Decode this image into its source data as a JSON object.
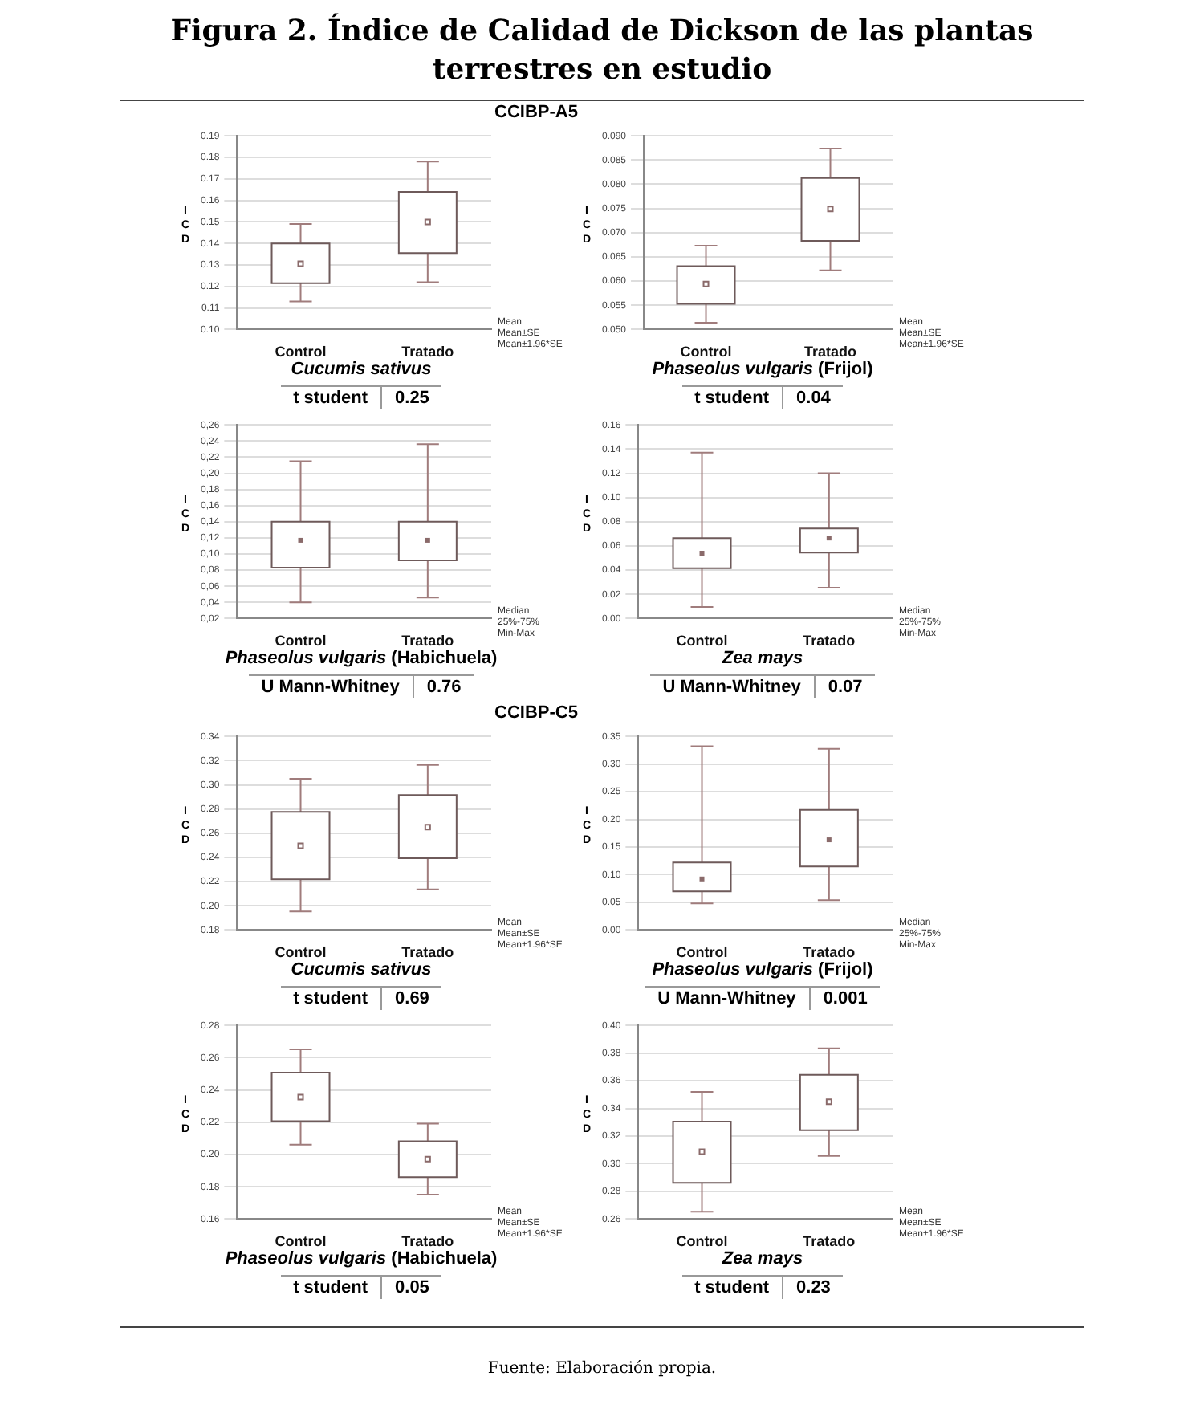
{
  "chart_data": [
    {
      "type": "box",
      "title": "Figura 2. Índice de Calidad de Dickson de las plantas terrestres en estudio",
      "subtitle": "CCIBP-A5",
      "xlabel": "Cucumis sativus",
      "ylabel": "ICD",
      "categories": [
        "Control",
        "Tratado"
      ],
      "grid": "y",
      "ylim": [
        0.1,
        0.19
      ],
      "yticks": [
        {
          "value": 0.1,
          "label": "0.10"
        },
        0.11,
        0.12,
        0.13,
        0.14,
        0.15,
        0.16,
        0.17,
        0.18,
        0.19
      ],
      "boxes": [
        {
          "low": 0.113,
          "q1": 0.1215,
          "q3": 0.14,
          "high": 0.149,
          "mean": 0.1306
        },
        {
          "low": 0.122,
          "q1": 0.1355,
          "q3": 0.164,
          "high": 0.178,
          "mean": 0.15
        }
      ],
      "annotations": [
        "t student",
        "0.25",
        "Mean",
        "Mean±SE",
        "Mean±1.96*SE"
      ]
    },
    {
      "type": "box",
      "xlabel": "Phaseolus vulgaris (Frijol)",
      "ylabel": "ICD",
      "categories": [
        "Control",
        "Tratado"
      ],
      "grid": "y",
      "ylim": [
        0.05,
        0.09
      ],
      "yticks": [
        {
          "value": 0.05,
          "label": "0.050"
        },
        0.055,
        {
          "value": 0.06,
          "label": "0.060"
        },
        0.065,
        {
          "value": 0.07,
          "label": "0.070"
        },
        0.075,
        {
          "value": 0.08,
          "label": "0.080"
        },
        0.085,
        {
          "value": 0.09,
          "label": "0.090"
        }
      ],
      "boxes": [
        {
          "low": 0.0514,
          "q1": 0.0553,
          "q3": 0.0631,
          "high": 0.0673,
          "mean": 0.0594
        },
        {
          "low": 0.0622,
          "q1": 0.0683,
          "q3": 0.0813,
          "high": 0.0874,
          "mean": 0.0749
        }
      ],
      "annotations": [
        "t student",
        "0.04",
        "Mean",
        "Mean±SE",
        "Mean±1.96*SE"
      ]
    },
    {
      "type": "box",
      "xlabel": "Phaseolus vulgaris (Habichuela)",
      "ylabel": "ICD",
      "categories": [
        "Control",
        "Tratado"
      ],
      "grid": "y",
      "ylim": [
        0.02,
        0.26
      ],
      "yticks": [
        {
          "value": 0.02,
          "label": "0,02"
        },
        {
          "value": 0.04,
          "label": "0,04"
        },
        {
          "value": 0.06,
          "label": "0,06"
        },
        {
          "value": 0.08,
          "label": "0,08"
        },
        {
          "value": 0.1,
          "label": "0,10"
        },
        {
          "value": 0.12,
          "label": "0,12"
        },
        {
          "value": 0.14,
          "label": "0,14"
        },
        {
          "value": 0.16,
          "label": "0,16"
        },
        {
          "value": 0.18,
          "label": "0,18"
        },
        {
          "value": 0.2,
          "label": "0,20"
        },
        {
          "value": 0.22,
          "label": "0,22"
        },
        {
          "value": 0.24,
          "label": "0,24"
        },
        {
          "value": 0.26,
          "label": "0,26"
        }
      ],
      "boxes": [
        {
          "low": 0.04,
          "q1": 0.083,
          "median": 0.117,
          "q3": 0.14,
          "high": 0.215
        },
        {
          "low": 0.046,
          "q1": 0.092,
          "median": 0.117,
          "q3": 0.14,
          "high": 0.236
        }
      ],
      "annotations": [
        "U Mann-Whitney",
        "0.76",
        "Median",
        "25%-75%",
        "Min-Max"
      ]
    },
    {
      "type": "box",
      "xlabel": "Zea mays",
      "ylabel": "ICD",
      "categories": [
        "Control",
        "Tratado"
      ],
      "grid": "y",
      "ylim": [
        0,
        0.16
      ],
      "yticks": [
        {
          "value": 0,
          "label": "0.00"
        },
        0.02,
        0.04,
        0.06,
        0.08,
        {
          "value": 0.1,
          "label": "0.10"
        },
        0.12,
        0.14,
        0.16
      ],
      "boxes": [
        {
          "low": 0.0096,
          "q1": 0.0416,
          "median": 0.054,
          "q3": 0.0665,
          "high": 0.137
        },
        {
          "low": 0.0254,
          "q1": 0.0545,
          "median": 0.0665,
          "q3": 0.0744,
          "high": 0.12
        }
      ],
      "annotations": [
        "U Mann-Whitney",
        "0.07",
        "Median",
        "25%-75%",
        "Min-Max"
      ]
    },
    {
      "type": "box",
      "subtitle": "CCIBP-C5",
      "xlabel": "Cucumis sativus",
      "ylabel": "ICD",
      "categories": [
        "Control",
        "Tratado"
      ],
      "grid": "y",
      "ylim": [
        0.18,
        0.34
      ],
      "yticks": [
        0.18,
        {
          "value": 0.2,
          "label": "0.20"
        },
        0.22,
        0.24,
        0.26,
        0.28,
        {
          "value": 0.3,
          "label": "0.30"
        },
        0.32,
        0.34
      ],
      "boxes": [
        {
          "low": 0.1954,
          "q1": 0.2219,
          "q3": 0.2776,
          "high": 0.305,
          "mean": 0.2496
        },
        {
          "low": 0.2136,
          "q1": 0.2393,
          "q3": 0.2915,
          "high": 0.3164,
          "mean": 0.265
        }
      ],
      "annotations": [
        "t student",
        "0.69",
        "Mean",
        "Mean±SE",
        "Mean±1.96*SE"
      ]
    },
    {
      "type": "box",
      "xlabel": "Phaseolus vulgaris (Frijol)",
      "ylabel": "ICD",
      "categories": [
        "Control",
        "Tratado"
      ],
      "grid": "y",
      "ylim": [
        0,
        0.35
      ],
      "yticks": [
        {
          "value": 0,
          "label": "0.00"
        },
        0.05,
        {
          "value": 0.1,
          "label": "0.10"
        },
        0.15,
        {
          "value": 0.2,
          "label": "0.20"
        },
        0.25,
        {
          "value": 0.3,
          "label": "0.30"
        },
        0.35
      ],
      "boxes": [
        {
          "low": 0.048,
          "q1": 0.0697,
          "median": 0.0923,
          "q3": 0.122,
          "high": 0.332
        },
        {
          "low": 0.054,
          "q1": 0.115,
          "median": 0.163,
          "q3": 0.217,
          "high": 0.3275
        }
      ],
      "annotations": [
        "U Mann-Whitney",
        "0.001",
        "Median",
        "25%-75%",
        "Min-Max"
      ]
    },
    {
      "type": "box",
      "xlabel": "Phaseolus vulgaris (Habichuela)",
      "ylabel": "ICD",
      "categories": [
        "Control",
        "Tratado"
      ],
      "grid": "y",
      "ylim": [
        0.16,
        0.28
      ],
      "yticks": [
        0.16,
        0.18,
        {
          "value": 0.2,
          "label": "0.20"
        },
        0.22,
        0.24,
        0.26,
        0.28
      ],
      "boxes": [
        {
          "low": 0.2061,
          "q1": 0.2206,
          "q3": 0.2507,
          "high": 0.2652,
          "mean": 0.2356
        },
        {
          "low": 0.1751,
          "q1": 0.186,
          "q3": 0.2082,
          "high": 0.2191,
          "mean": 0.1972
        }
      ],
      "annotations": [
        "t student",
        "0.05",
        "Mean",
        "Mean±SE",
        "Mean±1.96*SE"
      ]
    },
    {
      "type": "box",
      "xlabel": "Zea mays",
      "ylabel": "ICD",
      "categories": [
        "Control",
        "Tratado"
      ],
      "grid": "y",
      "ylim": [
        0.26,
        0.4
      ],
      "yticks": [
        0.26,
        0.28,
        {
          "value": 0.3,
          "label": "0.30"
        },
        0.32,
        0.34,
        0.36,
        0.38,
        {
          "value": 0.4,
          "label": "0.40"
        }
      ],
      "boxes": [
        {
          "low": 0.2653,
          "q1": 0.2862,
          "q3": 0.3305,
          "high": 0.352,
          "mean": 0.3087
        },
        {
          "low": 0.3057,
          "q1": 0.3242,
          "q3": 0.3643,
          "high": 0.3835,
          "mean": 0.3448
        }
      ],
      "annotations": [
        "t student",
        "0.23",
        "Mean",
        "Mean±SE",
        "Mean±1.96*SE",
        "Fuente: Elaboración propia."
      ]
    }
  ]
}
